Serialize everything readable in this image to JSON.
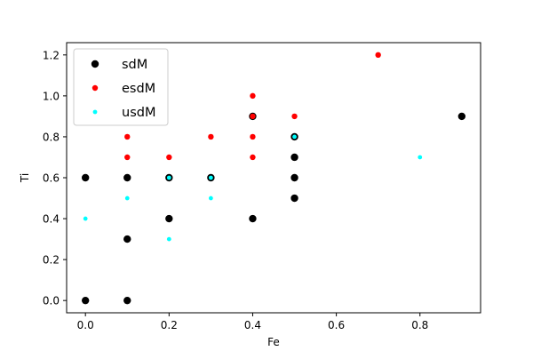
{
  "chart_data": {
    "type": "scatter",
    "xlabel": "Fe",
    "ylabel": "Ti",
    "xlim": [
      -0.045,
      0.945
    ],
    "ylim": [
      -0.06,
      1.26
    ],
    "xticks": [
      "0.0",
      "0.2",
      "0.4",
      "0.6",
      "0.8"
    ],
    "yticks": [
      "0.0",
      "0.2",
      "0.4",
      "0.6",
      "0.8",
      "1.0",
      "1.2"
    ],
    "legend_position": "upper-left",
    "grid": false,
    "series": [
      {
        "name": "sdM",
        "color": "#000000",
        "marker": "large",
        "points": [
          [
            0.0,
            0.0
          ],
          [
            0.0,
            0.6
          ],
          [
            0.1,
            0.0
          ],
          [
            0.1,
            0.3
          ],
          [
            0.1,
            0.6
          ],
          [
            0.2,
            0.4
          ],
          [
            0.2,
            0.6
          ],
          [
            0.3,
            0.6
          ],
          [
            0.4,
            0.4
          ],
          [
            0.4,
            0.9
          ],
          [
            0.5,
            0.5
          ],
          [
            0.5,
            0.6
          ],
          [
            0.5,
            0.7
          ],
          [
            0.5,
            0.8
          ],
          [
            0.9,
            0.9
          ]
        ]
      },
      {
        "name": "esdM",
        "color": "#ff0000",
        "marker": "medium",
        "points": [
          [
            0.1,
            0.7
          ],
          [
            0.1,
            0.8
          ],
          [
            0.2,
            0.7
          ],
          [
            0.3,
            0.8
          ],
          [
            0.4,
            0.7
          ],
          [
            0.4,
            0.8
          ],
          [
            0.4,
            0.9
          ],
          [
            0.4,
            1.0
          ],
          [
            0.5,
            0.9
          ],
          [
            0.7,
            1.2
          ]
        ]
      },
      {
        "name": "usdM",
        "color": "#00ffff",
        "marker": "small",
        "points": [
          [
            0.0,
            0.4
          ],
          [
            0.1,
            0.5
          ],
          [
            0.2,
            0.3
          ],
          [
            0.2,
            0.6
          ],
          [
            0.3,
            0.5
          ],
          [
            0.3,
            0.6
          ],
          [
            0.5,
            0.8
          ],
          [
            0.8,
            0.7
          ]
        ]
      }
    ]
  }
}
